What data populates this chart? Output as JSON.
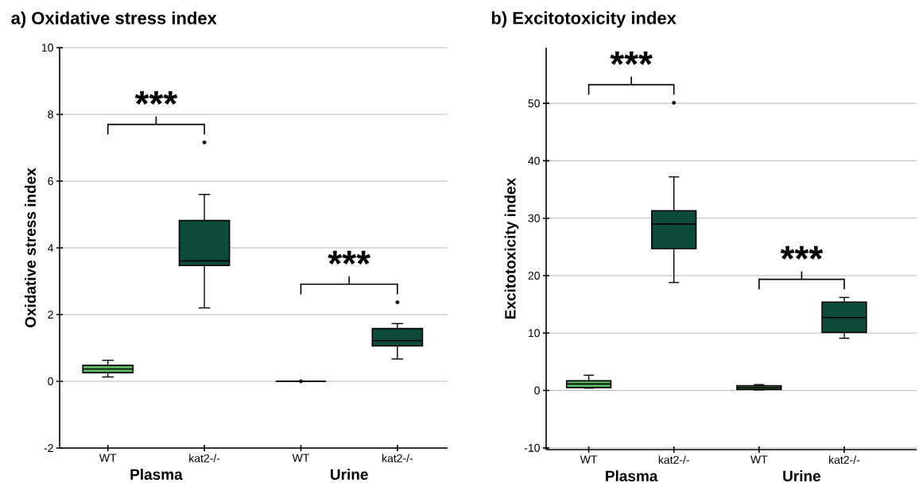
{
  "chart_data": [
    {
      "type": "box",
      "title": "a) Oxidative stress index",
      "ylabel": "Oxidative stress index",
      "categories": [
        "WT",
        "kat2-/-",
        "WT",
        "kat2-/-"
      ],
      "boxes": [
        {
          "low": 0.13,
          "q1": 0.26,
          "median": 0.37,
          "q3": 0.48,
          "high": 0.63
        },
        {
          "low": 2.2,
          "q1": 3.47,
          "median": 3.61,
          "q3": 4.82,
          "high": 5.6,
          "outliers": [
            7.16
          ]
        },
        {
          "low": 0,
          "q1": 0,
          "median": 0,
          "q3": 0,
          "high": 0,
          "outliers": [
            0
          ]
        },
        {
          "low": 0.67,
          "q1": 1.06,
          "median": 1.22,
          "q3": 1.58,
          "high": 1.73,
          "outliers": [
            2.37
          ]
        }
      ],
      "colors": [
        "#5cb85c",
        "#0e4a3c",
        "#000000",
        "#0e4a3c"
      ],
      "ylim": [
        -2,
        10
      ],
      "yticks": [
        -2,
        0,
        2,
        4,
        6,
        8,
        10
      ],
      "grid": "y",
      "annotations": [
        "***",
        "***",
        "Plasma",
        "Urine"
      ]
    },
    {
      "type": "box",
      "title": "b) Excitotoxicity index",
      "ylabel": "Excitotoxicity index",
      "categories": [
        "WT",
        "kat2-/-",
        "WT",
        "kat2-/-"
      ],
      "boxes": [
        {
          "low": 0.41,
          "q1": 0.51,
          "median": 1.13,
          "q3": 1.69,
          "high": 2.66
        },
        {
          "low": 18.8,
          "q1": 24.7,
          "median": 29.0,
          "q3": 31.3,
          "high": 37.2,
          "outliers": [
            50.1
          ]
        },
        {
          "low": 0.1,
          "q1": 0.2,
          "median": 0.51,
          "q3": 0.82,
          "high": 1.02
        },
        {
          "low": 9.1,
          "q1": 10.1,
          "median": 12.7,
          "q3": 15.4,
          "high": 16.2
        }
      ],
      "colors": [
        "#5cb85c",
        "#0e4a3c",
        "#5cb85c",
        "#0e4a3c"
      ],
      "ylim": [
        -10.3,
        59.7
      ],
      "yticks": [
        -10,
        0,
        10,
        20,
        30,
        40,
        50
      ],
      "grid": "y",
      "annotations": [
        "***",
        "***",
        "Plasma",
        "Urine"
      ]
    }
  ]
}
